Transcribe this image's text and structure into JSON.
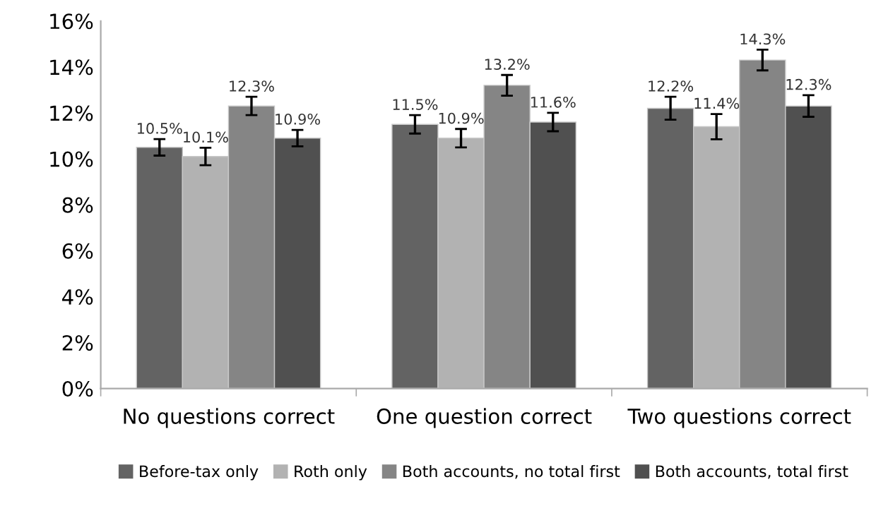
{
  "chart_data": {
    "type": "bar",
    "categories": [
      "No questions correct",
      "One question correct",
      "Two questions correct"
    ],
    "series": [
      {
        "name": "Before-tax only",
        "color": "#636363",
        "values": [
          10.5,
          11.5,
          12.2
        ],
        "errors": [
          0.36,
          0.4,
          0.5
        ],
        "value_labels": [
          "10.5%",
          "11.5%",
          "12.2%"
        ]
      },
      {
        "name": "Roth only",
        "color": "#b2b2b2",
        "values": [
          10.1,
          10.9,
          11.4
        ],
        "errors": [
          0.38,
          0.4,
          0.55
        ],
        "value_labels": [
          "10.1%",
          "10.9%",
          "11.4%"
        ]
      },
      {
        "name": "Both accounts, no total first",
        "color": "#858585",
        "values": [
          12.3,
          13.2,
          14.3
        ],
        "errors": [
          0.4,
          0.45,
          0.45
        ],
        "value_labels": [
          "12.3%",
          "13.2%",
          "14.3%"
        ]
      },
      {
        "name": "Both accounts, total first",
        "color": "#505050",
        "values": [
          10.9,
          11.6,
          12.3
        ],
        "errors": [
          0.36,
          0.4,
          0.47
        ],
        "value_labels": [
          "10.9%",
          "11.6%",
          "12.3%"
        ]
      }
    ],
    "ylim": [
      0,
      16
    ],
    "yticks": [
      {
        "value": 0,
        "label": "0%"
      },
      {
        "value": 2,
        "label": "2%"
      },
      {
        "value": 4,
        "label": "4%"
      },
      {
        "value": 6,
        "label": "6%"
      },
      {
        "value": 8,
        "label": "8%"
      },
      {
        "value": 10,
        "label": "10%"
      },
      {
        "value": 12,
        "label": "12%"
      },
      {
        "value": 14,
        "label": "14%"
      },
      {
        "value": 16,
        "label": "16%"
      }
    ],
    "grid": false,
    "legend": "bottom"
  }
}
